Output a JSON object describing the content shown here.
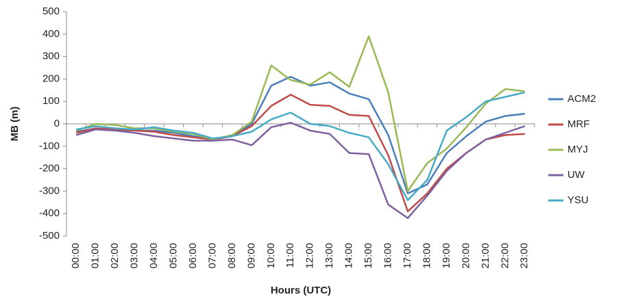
{
  "chart_data": {
    "type": "line",
    "y_label": "MB (m)",
    "x_label": "Hours (UTC)",
    "categories": [
      "00:00",
      "01:00",
      "02:00",
      "03:00",
      "04:00",
      "05:00",
      "06:00",
      "07:00",
      "08:00",
      "09:00",
      "10:00",
      "11:00",
      "12:00",
      "13:00",
      "14:00",
      "15:00",
      "16:00",
      "17:00",
      "18:00",
      "19:00",
      "20:00",
      "21:00",
      "22:00",
      "23:00"
    ],
    "series": [
      {
        "name": "ACM2",
        "color": "#4a7ebb",
        "values": [
          -35,
          -20,
          -25,
          -30,
          -30,
          -40,
          -55,
          -70,
          -55,
          0,
          170,
          210,
          170,
          185,
          135,
          110,
          -50,
          -310,
          -270,
          -130,
          -55,
          10,
          35,
          45
        ]
      },
      {
        "name": "MRF",
        "color": "#be4b48",
        "values": [
          -40,
          -20,
          -25,
          -30,
          -35,
          -50,
          -60,
          -70,
          -55,
          -10,
          80,
          130,
          85,
          80,
          40,
          35,
          -140,
          -390,
          -310,
          -200,
          -130,
          -70,
          -50,
          -45
        ]
      },
      {
        "name": "MYJ",
        "color": "#98b954",
        "values": [
          -30,
          0,
          -5,
          -20,
          -20,
          -35,
          -45,
          -70,
          -50,
          10,
          260,
          195,
          175,
          230,
          165,
          390,
          140,
          -300,
          -175,
          -110,
          -15,
          90,
          155,
          145
        ]
      },
      {
        "name": "UW",
        "color": "#7d60a0",
        "values": [
          -50,
          -25,
          -30,
          -40,
          -55,
          -65,
          -75,
          -75,
          -70,
          -95,
          -15,
          5,
          -30,
          -45,
          -130,
          -135,
          -360,
          -420,
          -320,
          -210,
          -130,
          -70,
          -40,
          -10
        ]
      },
      {
        "name": "YSU",
        "color": "#46aac5",
        "values": [
          -25,
          -10,
          -20,
          -25,
          -15,
          -30,
          -40,
          -65,
          -55,
          -35,
          20,
          50,
          0,
          -10,
          -40,
          -60,
          -180,
          -340,
          -250,
          -30,
          30,
          100,
          120,
          140
        ]
      }
    ],
    "ylim": [
      -500,
      500
    ],
    "yticks": [
      -500,
      -400,
      -300,
      -200,
      -100,
      0,
      100,
      200,
      300,
      400,
      500
    ]
  }
}
